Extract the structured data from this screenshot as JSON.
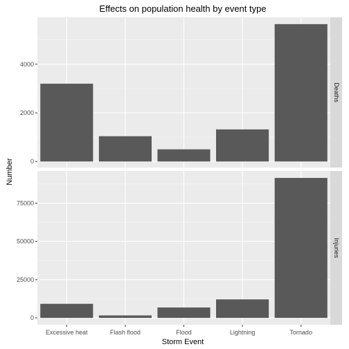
{
  "chart_data": {
    "type": "bar",
    "title": "Effects on population health by event type",
    "xlabel": "Storm Event",
    "ylabel": "Number",
    "categories": [
      "Excessive heat",
      "Flash flood",
      "Flood",
      "Lightning",
      "Tornado"
    ],
    "facet_layout": "rows",
    "facets": [
      {
        "name": "Deaths",
        "values": [
          3200,
          1040,
          500,
          1320,
          5650
        ],
        "ylim": [
          -250,
          5930
        ],
        "yticks": [
          0,
          2000,
          4000
        ],
        "ytick_labels": [
          "0",
          "2000",
          "4000"
        ]
      },
      {
        "name": "Injuries",
        "values": [
          9200,
          1600,
          6800,
          12100,
          91500
        ],
        "ylim": [
          -4500,
          96000
        ],
        "yticks": [
          0,
          25000,
          50000,
          75000
        ],
        "ytick_labels": [
          "0",
          "25000",
          "50000",
          "75000"
        ]
      }
    ],
    "grid": true,
    "legend": "none",
    "colors": {
      "bar": "#595959",
      "panel_background": "#ebebeb",
      "grid_major": "#ffffff",
      "strip_background": "#d9d9d9",
      "tick": "#333333",
      "tick_label": "#4d4d4d"
    }
  }
}
